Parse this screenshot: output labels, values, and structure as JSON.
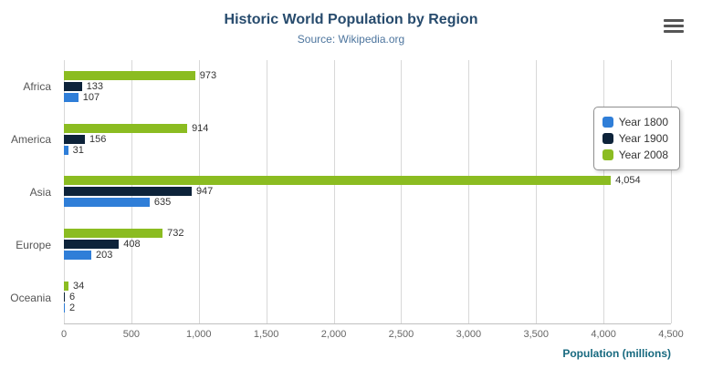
{
  "header": {
    "title": "Historic World Population by Region",
    "subtitle": "Source: Wikipedia.org"
  },
  "menu": {
    "icon": "hamburger-icon"
  },
  "chart_data": {
    "type": "bar",
    "orientation": "horizontal",
    "title": "Historic World Population by Region",
    "subtitle": "Source: Wikipedia.org",
    "categories": [
      "Africa",
      "America",
      "Asia",
      "Europe",
      "Oceania"
    ],
    "series": [
      {
        "name": "Year 1800",
        "color": "#2f7ed8",
        "values": [
          107,
          31,
          635,
          203,
          2
        ]
      },
      {
        "name": "Year 1900",
        "color": "#0d233a",
        "values": [
          133,
          156,
          947,
          408,
          6
        ]
      },
      {
        "name": "Year 2008",
        "color": "#8bbc21",
        "values": [
          973,
          914,
          4054,
          732,
          34
        ]
      }
    ],
    "series_display_order_top_to_bottom": [
      "Year 2008",
      "Year 1900",
      "Year 1800"
    ],
    "data_labels": true,
    "xlabel": "Population (millions)",
    "ylabel": "",
    "xlim": [
      0,
      4500
    ],
    "xticks": [
      0,
      500,
      1000,
      1500,
      2000,
      2500,
      3000,
      3500,
      4000,
      4500
    ],
    "grid": true,
    "legend_position": "right"
  },
  "colors": {
    "title": "#274b6d",
    "subtitle": "#4d759e",
    "axis_title": "#17697f",
    "gridline": "#d8d8d8",
    "axis_line": "#c0c0c0",
    "tick_label": "#666666",
    "data_label": "#333333"
  }
}
